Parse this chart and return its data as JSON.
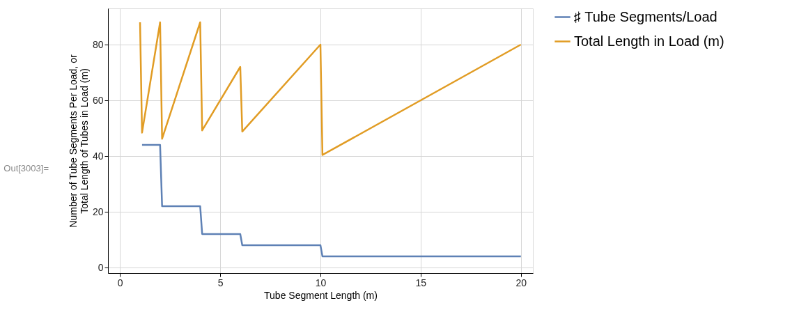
{
  "chart_data": {
    "type": "line",
    "xlabel": "Tube Segment Length (m)",
    "ylabel": "Number of Tube Segments Per Load, or\nTotal Length of Tubes in Load (m)",
    "x": [
      1,
      1.1,
      2,
      2.1,
      4,
      4.1,
      6,
      6.1,
      10,
      10.1,
      20
    ],
    "series": [
      {
        "name": "♯ Tube Segments/Load",
        "color": "#5e81b5",
        "values": [
          null,
          44,
          44,
          22,
          22,
          12,
          12,
          8,
          8,
          4,
          4
        ]
      },
      {
        "name": "Total Length in Load (m)",
        "color": "#e19c24",
        "values": [
          88,
          48.4,
          88,
          46.2,
          88,
          49.2,
          72,
          48.8,
          80,
          40.4,
          80
        ]
      }
    ],
    "xlim": [
      -0.6,
      20.6
    ],
    "xticks": [
      0,
      5,
      10,
      15,
      20
    ],
    "ylim": [
      -2,
      93
    ],
    "yticks": [
      0,
      20,
      40,
      60,
      80
    ],
    "grid": true,
    "legend": "right",
    "marker": "none",
    "line_style": "solid",
    "annotations": [
      "Out[3003]="
    ]
  }
}
